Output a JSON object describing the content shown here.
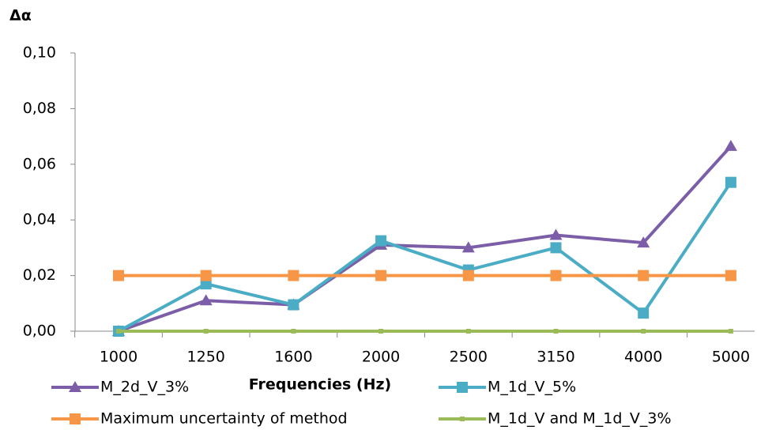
{
  "chart_data": {
    "type": "line",
    "y_label": "Δα",
    "x_label": "Frequencies (Hz)",
    "categories": [
      "1000",
      "1250",
      "1600",
      "2000",
      "2500",
      "3150",
      "4000",
      "5000"
    ],
    "series": [
      {
        "name": "M_2d_V_3%",
        "color": "#7b5ea7",
        "marker": "triangle",
        "values": [
          0,
          0.011,
          0.0095,
          0.031,
          0.03,
          0.0345,
          0.0318,
          0.0665
        ]
      },
      {
        "name": "M_1d_V_5%",
        "color": "#4bacc6",
        "marker": "square",
        "values": [
          0,
          0.017,
          0.0095,
          0.0325,
          0.022,
          0.03,
          0.0065,
          0.0535
        ]
      },
      {
        "name": "Maximum uncertainty of method",
        "color": "#f79646",
        "marker": "square",
        "values": [
          0.02,
          0.02,
          0.02,
          0.02,
          0.02,
          0.02,
          0.02,
          0.02
        ]
      },
      {
        "name": "M_1d_V and M_1d_V_3%",
        "color": "#9bbb59",
        "marker": "small-square",
        "values": [
          0,
          0,
          0,
          0,
          0,
          0,
          0,
          0
        ]
      }
    ],
    "ylim": [
      0,
      0.1
    ],
    "yticks": [
      {
        "value": 0,
        "label": "0,00"
      },
      {
        "value": 0.02,
        "label": "0,02"
      },
      {
        "value": 0.04,
        "label": "0,04"
      },
      {
        "value": 0.06,
        "label": "0,06"
      },
      {
        "value": 0.08,
        "label": "0,08"
      },
      {
        "value": 0.1,
        "label": "0,10"
      }
    ]
  }
}
